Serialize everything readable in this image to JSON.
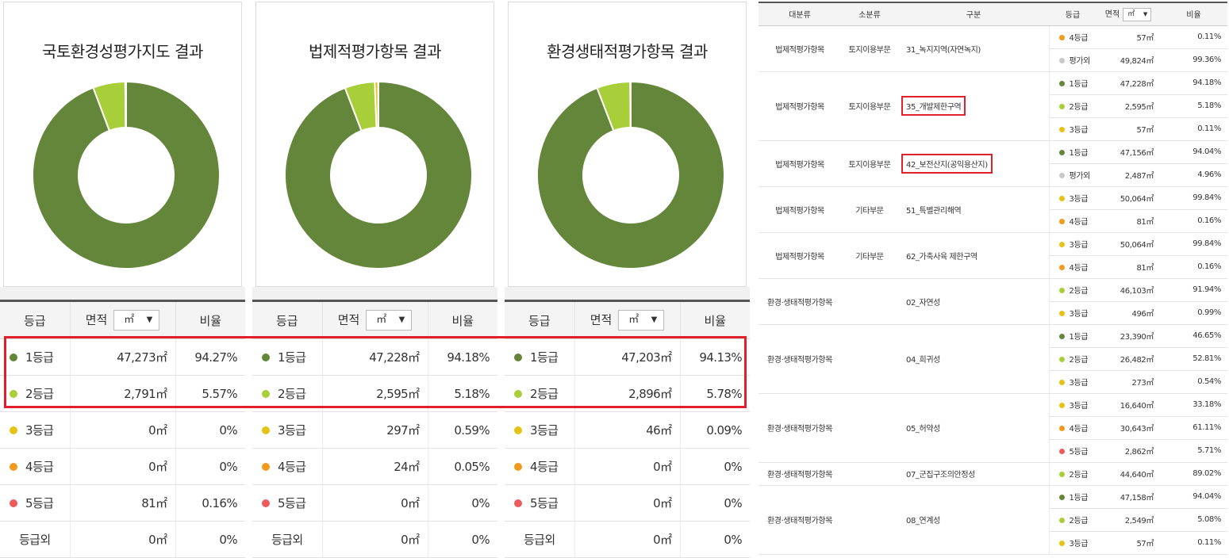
{
  "colors": {
    "grade1": "#64863a",
    "grade2": "#a8cf3a",
    "grade3": "#e5c315",
    "grade4": "#f09b1e",
    "grade5": "#ee5b5b",
    "outside": "#c8c8c8",
    "highlight": "#e0202a"
  },
  "header": {
    "grade": "등급",
    "area": "면적",
    "unit": "㎡",
    "ratio": "비율"
  },
  "panels": [
    {
      "title": "국토환경성평가지도 결과",
      "rows": [
        {
          "grade": "1등급",
          "area": "47,273㎡",
          "ratio": "94.27%"
        },
        {
          "grade": "2등급",
          "area": "2,791㎡",
          "ratio": "5.57%"
        },
        {
          "grade": "3등급",
          "area": "0㎡",
          "ratio": "0%"
        },
        {
          "grade": "4등급",
          "area": "0㎡",
          "ratio": "0%"
        },
        {
          "grade": "5등급",
          "area": "81㎡",
          "ratio": "0.16%"
        },
        {
          "grade": "등급외",
          "area": "0㎡",
          "ratio": "0%"
        }
      ],
      "donut": [
        94.27,
        5.57,
        0,
        0,
        0.16,
        0
      ]
    },
    {
      "title": "법제적평가항목 결과",
      "rows": [
        {
          "grade": "1등급",
          "area": "47,228㎡",
          "ratio": "94.18%"
        },
        {
          "grade": "2등급",
          "area": "2,595㎡",
          "ratio": "5.18%"
        },
        {
          "grade": "3등급",
          "area": "297㎡",
          "ratio": "0.59%"
        },
        {
          "grade": "4등급",
          "area": "24㎡",
          "ratio": "0.05%"
        },
        {
          "grade": "5등급",
          "area": "0㎡",
          "ratio": "0%"
        },
        {
          "grade": "등급외",
          "area": "0㎡",
          "ratio": "0%"
        }
      ],
      "donut": [
        94.18,
        5.18,
        0.59,
        0.05,
        0,
        0
      ]
    },
    {
      "title": "환경생태적평가항목 결과",
      "rows": [
        {
          "grade": "1등급",
          "area": "47,203㎡",
          "ratio": "94.13%"
        },
        {
          "grade": "2등급",
          "area": "2,896㎡",
          "ratio": "5.78%"
        },
        {
          "grade": "3등급",
          "area": "46㎡",
          "ratio": "0.09%"
        },
        {
          "grade": "4등급",
          "area": "0㎡",
          "ratio": "0%"
        },
        {
          "grade": "5등급",
          "area": "0㎡",
          "ratio": "0%"
        },
        {
          "grade": "등급외",
          "area": "0㎡",
          "ratio": "0%"
        }
      ],
      "donut": [
        94.13,
        5.78,
        0.09,
        0,
        0,
        0
      ]
    }
  ],
  "detail": {
    "headers": {
      "major": "대분류",
      "minor": "소분류",
      "item": "구분",
      "grade": "등급",
      "area": "면적",
      "unit": "㎡",
      "ratio": "비율"
    },
    "groups": [
      {
        "major": "법제적평가항목",
        "minor": "토지이용부문",
        "item": "31_녹지지역(자연녹지)",
        "highlight": false,
        "rows": [
          {
            "grade": "4등급",
            "g": 4,
            "area": "57㎡",
            "ratio": "0.11%"
          },
          {
            "grade": "평가외",
            "g": 0,
            "area": "49,824㎡",
            "ratio": "99.36%"
          }
        ]
      },
      {
        "major": "법제적평가항목",
        "minor": "토지이용부문",
        "item": "35_개발제한구역",
        "highlight": true,
        "rows": [
          {
            "grade": "1등급",
            "g": 1,
            "area": "47,228㎡",
            "ratio": "94.18%"
          },
          {
            "grade": "2등급",
            "g": 2,
            "area": "2,595㎡",
            "ratio": "5.18%"
          },
          {
            "grade": "3등급",
            "g": 3,
            "area": "57㎡",
            "ratio": "0.11%"
          }
        ]
      },
      {
        "major": "법제적평가항목",
        "minor": "토지이용부문",
        "item": "42_보전산지(공익용산지)",
        "highlight": true,
        "rows": [
          {
            "grade": "1등급",
            "g": 1,
            "area": "47,156㎡",
            "ratio": "94.04%"
          },
          {
            "grade": "평가외",
            "g": 0,
            "area": "2,487㎡",
            "ratio": "4.96%"
          }
        ]
      },
      {
        "major": "법제적평가항목",
        "minor": "기타부문",
        "item": "51_특별관리해역",
        "highlight": false,
        "rows": [
          {
            "grade": "3등급",
            "g": 3,
            "area": "50,064㎡",
            "ratio": "99.84%"
          },
          {
            "grade": "4등급",
            "g": 4,
            "area": "81㎡",
            "ratio": "0.16%"
          }
        ]
      },
      {
        "major": "법제적평가항목",
        "minor": "기타부문",
        "item": "62_가축사육 제한구역",
        "highlight": false,
        "rows": [
          {
            "grade": "3등급",
            "g": 3,
            "area": "50,064㎡",
            "ratio": "99.84%"
          },
          {
            "grade": "4등급",
            "g": 4,
            "area": "81㎡",
            "ratio": "0.16%"
          }
        ]
      },
      {
        "major": "환경·생태적평가항목",
        "minor": "",
        "item": "02_자연성",
        "highlight": false,
        "rows": [
          {
            "grade": "2등급",
            "g": 2,
            "area": "46,103㎡",
            "ratio": "91.94%"
          },
          {
            "grade": "3등급",
            "g": 3,
            "area": "496㎡",
            "ratio": "0.99%"
          }
        ]
      },
      {
        "major": "환경·생태적평가항목",
        "minor": "",
        "item": "04_희귀성",
        "highlight": false,
        "rows": [
          {
            "grade": "1등급",
            "g": 1,
            "area": "23,390㎡",
            "ratio": "46.65%"
          },
          {
            "grade": "2등급",
            "g": 2,
            "area": "26,482㎡",
            "ratio": "52.81%"
          },
          {
            "grade": "3등급",
            "g": 3,
            "area": "273㎡",
            "ratio": "0.54%"
          }
        ]
      },
      {
        "major": "환경·생태적평가항목",
        "minor": "",
        "item": "05_허약성",
        "highlight": false,
        "rows": [
          {
            "grade": "3등급",
            "g": 3,
            "area": "16,640㎡",
            "ratio": "33.18%"
          },
          {
            "grade": "4등급",
            "g": 4,
            "area": "30,643㎡",
            "ratio": "61.11%"
          },
          {
            "grade": "5등급",
            "g": 5,
            "area": "2,862㎡",
            "ratio": "5.71%"
          }
        ]
      },
      {
        "major": "환경·생태적평가항목",
        "minor": "",
        "item": "07_군집구조의안정성",
        "highlight": false,
        "rows": [
          {
            "grade": "2등급",
            "g": 2,
            "area": "44,640㎡",
            "ratio": "89.02%"
          }
        ]
      },
      {
        "major": "환경·생태적평가항목",
        "minor": "",
        "item": "08_연계성",
        "highlight": false,
        "rows": [
          {
            "grade": "1등급",
            "g": 1,
            "area": "47,158㎡",
            "ratio": "94.04%"
          },
          {
            "grade": "2등급",
            "g": 2,
            "area": "2,549㎡",
            "ratio": "5.08%"
          },
          {
            "grade": "3등급",
            "g": 3,
            "area": "57㎡",
            "ratio": "0.11%"
          }
        ]
      }
    ]
  }
}
